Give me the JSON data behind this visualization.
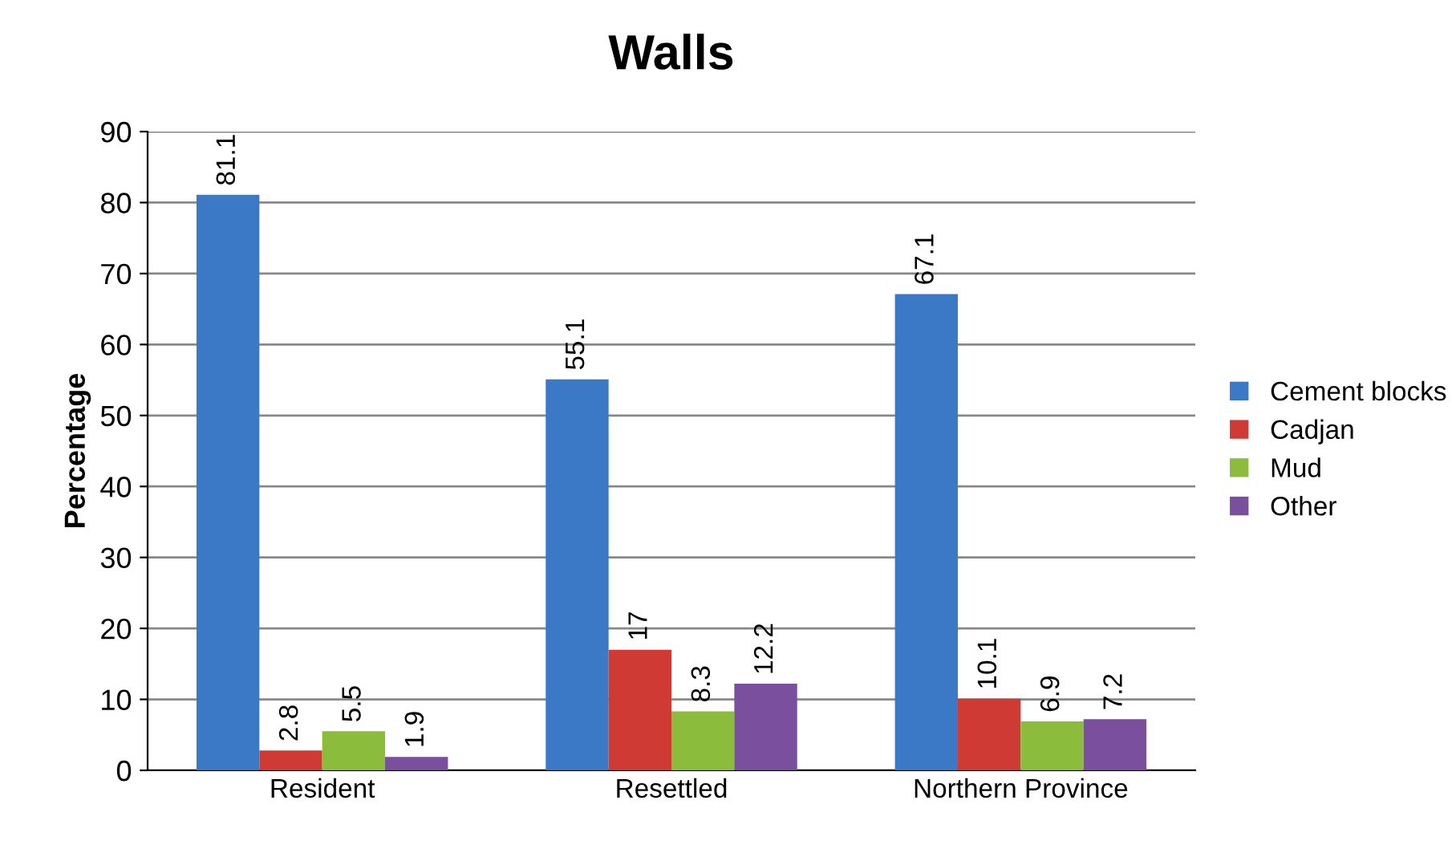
{
  "chart_data": {
    "type": "bar",
    "title": "Walls",
    "ylabel": "Percentage",
    "categories": [
      "Resident",
      "Resettled",
      "Northern Province"
    ],
    "series": [
      {
        "name": "Cement blocks",
        "color": "#3b78c6",
        "values": [
          81.1,
          55.1,
          67.1
        ]
      },
      {
        "name": "Cadjan",
        "color": "#cf3a34",
        "values": [
          2.8,
          17,
          10.1
        ]
      },
      {
        "name": "Mud",
        "color": "#8cbc3c",
        "values": [
          5.5,
          8.3,
          6.9
        ]
      },
      {
        "name": "Other",
        "color": "#7a4f9e",
        "values": [
          1.9,
          12.2,
          7.2
        ]
      }
    ],
    "ylim": [
      0,
      90
    ],
    "yticks": [
      0,
      10,
      20,
      30,
      40,
      50,
      60,
      70,
      80,
      90
    ],
    "grid": "y",
    "legend": "right",
    "data_labels": true
  }
}
